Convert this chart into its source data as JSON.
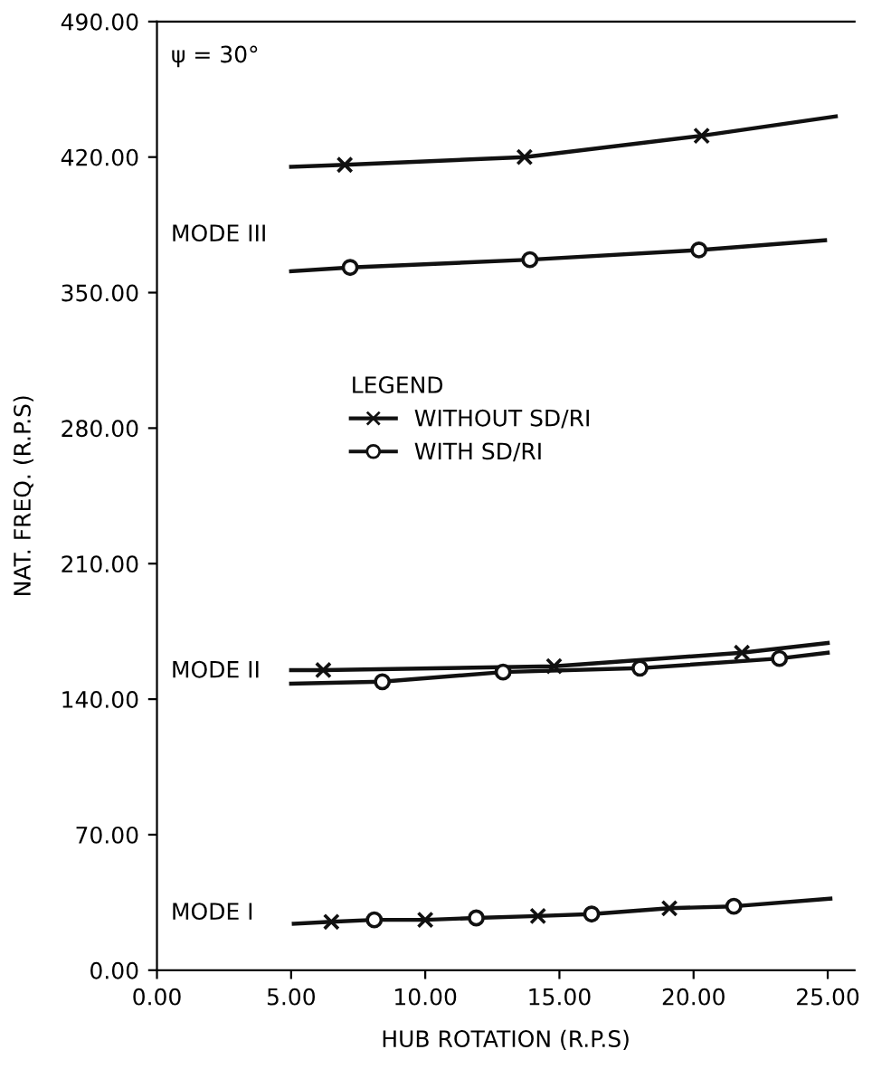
{
  "chart_data": {
    "type": "line",
    "xlabel": "HUB ROTATION (R.P.S)",
    "ylabel": "NAT. FREQ. (R.P.S)",
    "legend_title": "LEGEND",
    "legend": "center",
    "marker": "none",
    "line_style": "solid",
    "grid": false,
    "xlim": [
      0,
      26
    ],
    "ylim": [
      0,
      490
    ],
    "xticks": [
      {
        "value": 0,
        "label": "0.00"
      },
      {
        "value": 5,
        "label": "5.00"
      },
      {
        "value": 10,
        "label": "10.00"
      },
      {
        "value": 15,
        "label": "15.00"
      },
      {
        "value": 20,
        "label": "20.00"
      },
      {
        "value": 25,
        "label": "25.00"
      }
    ],
    "yticks": [
      {
        "value": 0,
        "label": "0.00"
      },
      {
        "value": 70,
        "label": "70.00"
      },
      {
        "value": 140,
        "label": "140.00"
      },
      {
        "value": 210,
        "label": "210.00"
      },
      {
        "value": 280,
        "label": "280.00"
      },
      {
        "value": 350,
        "label": "350.00"
      },
      {
        "value": 420,
        "label": "420.00"
      },
      {
        "value": 490,
        "label": "490.00"
      }
    ],
    "annotations": [
      "ψ = 30°",
      "MODE III",
      "MODE II",
      "MODE I"
    ],
    "series": [
      {
        "color": "#111111",
        "x": [
          5,
          7,
          13.7,
          20.3,
          25.3
        ],
        "values": [
          415,
          416,
          420,
          431,
          441
        ]
      },
      {
        "color": "#111111",
        "x": [
          5,
          7.2,
          13.9,
          20.2,
          24.9
        ],
        "values": [
          361,
          363,
          367,
          372,
          377
        ]
      },
      {
        "color": "#111111",
        "x": [
          5,
          6.2,
          14.8,
          21.8,
          25
        ],
        "values": [
          155,
          155,
          157,
          164,
          169
        ]
      },
      {
        "color": "#111111",
        "x": [
          5,
          8.4,
          12.9,
          18,
          23.2,
          25
        ],
        "values": [
          148,
          149,
          154,
          156,
          161,
          164
        ]
      },
      {
        "color": "#111111",
        "x": [
          5.1,
          6.5,
          8.1,
          10,
          11.9,
          14.2,
          16.2,
          19.1,
          21.5,
          25.1
        ],
        "values": [
          24,
          25,
          26,
          26,
          27,
          28,
          29,
          32,
          33,
          37
        ]
      },
      {
        "type": "scatter",
        "name": "WITHOUT SD/RI",
        "marker": "cross",
        "color": "#111111",
        "x": [
          7,
          13.7,
          20.3,
          6.2,
          14.8,
          21.8,
          6.5,
          10,
          14.2,
          19.1
        ],
        "values": [
          416,
          420,
          431,
          155,
          157,
          164,
          25,
          26,
          28,
          32
        ]
      },
      {
        "type": "scatter",
        "name": "WITH SD/RI",
        "marker": "circle",
        "color": "#111111",
        "x": [
          7.2,
          13.9,
          20.2,
          8.4,
          12.9,
          18,
          23.2,
          8.1,
          11.9,
          16.2,
          21.5
        ],
        "values": [
          363,
          367,
          372,
          149,
          154,
          156,
          161,
          26,
          27,
          29,
          33
        ]
      }
    ]
  }
}
